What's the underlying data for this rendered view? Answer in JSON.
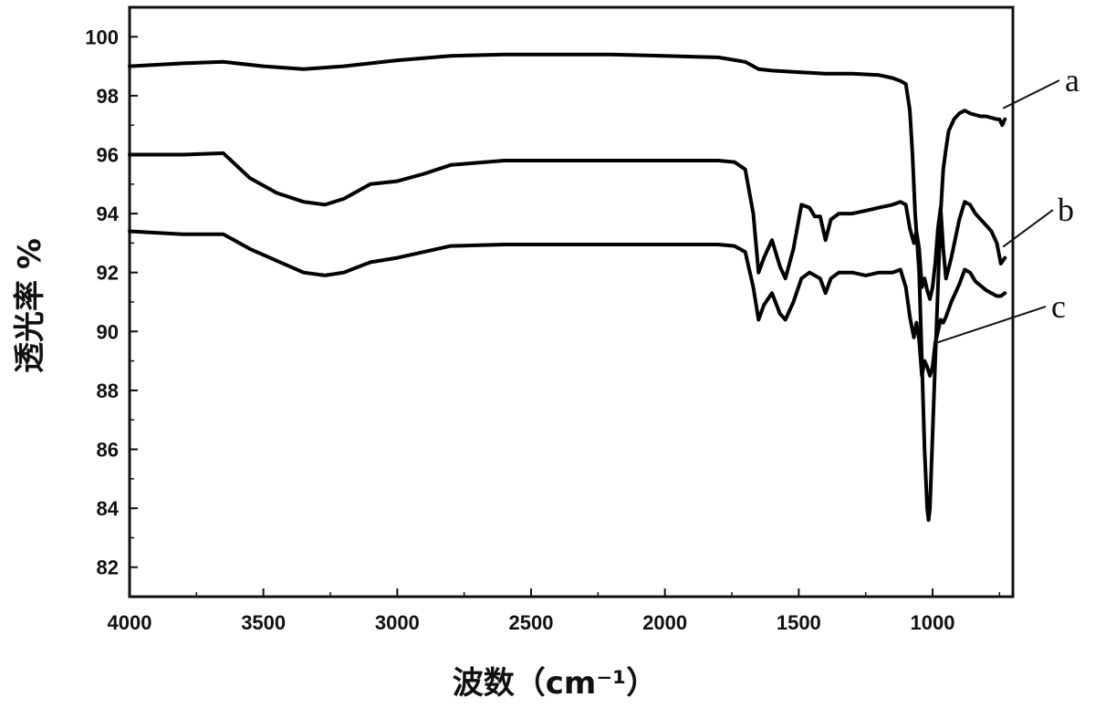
{
  "chart_data": {
    "type": "line",
    "title": "",
    "xlabel": "波数（cm⁻¹）",
    "ylabel": "透光率 %",
    "xlim": [
      4000,
      700
    ],
    "ylim": [
      81,
      101
    ],
    "x_reversed": true,
    "x_ticks": [
      4000,
      3500,
      3000,
      2500,
      2000,
      1500,
      1000
    ],
    "x_tick_labels": [
      "4000",
      "3500",
      "3000",
      "2500",
      "2000",
      "1500",
      "1000"
    ],
    "y_ticks": [
      82,
      84,
      86,
      88,
      90,
      92,
      94,
      96,
      98,
      100
    ],
    "y_tick_labels": [
      "82",
      "84",
      "86",
      "88",
      "90",
      "92",
      "94",
      "96",
      "98",
      "100"
    ],
    "grid": false,
    "legend": "none",
    "series": [
      {
        "name": "a",
        "color": "#000000",
        "x": [
          4000,
          3800,
          3650,
          3500,
          3350,
          3200,
          3000,
          2800,
          2600,
          2400,
          2200,
          2000,
          1800,
          1700,
          1650,
          1600,
          1500,
          1400,
          1300,
          1200,
          1150,
          1120,
          1100,
          1085,
          1075,
          1065,
          1050,
          1040,
          1030,
          1020,
          1015,
          1010,
          1000,
          990,
          980,
          970,
          960,
          950,
          940,
          920,
          900,
          880,
          860,
          840,
          820,
          800,
          780,
          760,
          750,
          740,
          730
        ],
        "y": [
          99.0,
          99.1,
          99.15,
          99.0,
          98.9,
          99.0,
          99.2,
          99.35,
          99.4,
          99.4,
          99.4,
          99.35,
          99.3,
          99.15,
          98.9,
          98.85,
          98.8,
          98.75,
          98.75,
          98.7,
          98.6,
          98.5,
          98.4,
          97.5,
          96.0,
          94.0,
          92.0,
          89.0,
          86.0,
          84.0,
          83.6,
          84.0,
          86.5,
          89.0,
          91.5,
          94.0,
          95.5,
          96.2,
          96.8,
          97.2,
          97.4,
          97.5,
          97.4,
          97.35,
          97.3,
          97.3,
          97.25,
          97.2,
          97.2,
          97.0,
          97.2
        ]
      },
      {
        "name": "b",
        "color": "#000000",
        "x": [
          4000,
          3800,
          3650,
          3550,
          3450,
          3350,
          3270,
          3200,
          3100,
          3000,
          2900,
          2800,
          2600,
          2400,
          2200,
          2000,
          1800,
          1740,
          1700,
          1670,
          1650,
          1630,
          1600,
          1570,
          1550,
          1520,
          1490,
          1460,
          1440,
          1420,
          1400,
          1380,
          1350,
          1300,
          1250,
          1200,
          1150,
          1120,
          1100,
          1085,
          1070,
          1060,
          1050,
          1040,
          1030,
          1020,
          1010,
          1000,
          990,
          980,
          970,
          960,
          950,
          930,
          900,
          880,
          860,
          840,
          800,
          780,
          760,
          745,
          730
        ],
        "y": [
          96.0,
          96.0,
          96.05,
          95.2,
          94.7,
          94.4,
          94.3,
          94.5,
          95.0,
          95.1,
          95.35,
          95.65,
          95.8,
          95.8,
          95.8,
          95.8,
          95.8,
          95.75,
          95.5,
          94.0,
          92.0,
          92.5,
          93.1,
          92.2,
          91.8,
          92.8,
          94.3,
          94.2,
          93.9,
          93.9,
          93.1,
          93.8,
          94.0,
          94.0,
          94.1,
          94.2,
          94.3,
          94.4,
          94.3,
          93.5,
          93.0,
          93.4,
          92.8,
          91.5,
          91.8,
          91.4,
          91.1,
          91.5,
          92.3,
          93.5,
          94.2,
          92.8,
          91.8,
          92.5,
          93.8,
          94.4,
          94.3,
          94.0,
          93.6,
          93.4,
          93.0,
          92.3,
          92.5
        ]
      },
      {
        "name": "c",
        "color": "#000000",
        "x": [
          4000,
          3800,
          3650,
          3550,
          3450,
          3350,
          3270,
          3200,
          3100,
          3000,
          2900,
          2800,
          2600,
          2400,
          2200,
          2000,
          1800,
          1740,
          1700,
          1670,
          1650,
          1630,
          1600,
          1570,
          1550,
          1520,
          1490,
          1460,
          1440,
          1420,
          1400,
          1380,
          1350,
          1300,
          1250,
          1200,
          1150,
          1120,
          1100,
          1085,
          1070,
          1060,
          1050,
          1040,
          1030,
          1020,
          1010,
          1000,
          990,
          980,
          970,
          960,
          950,
          930,
          900,
          880,
          860,
          840,
          800,
          780,
          760,
          745,
          730
        ],
        "y": [
          93.4,
          93.3,
          93.3,
          92.8,
          92.4,
          92.0,
          91.9,
          92.0,
          92.35,
          92.5,
          92.7,
          92.9,
          92.95,
          92.95,
          92.95,
          92.95,
          92.95,
          92.9,
          92.7,
          91.5,
          90.4,
          90.9,
          91.3,
          90.6,
          90.4,
          91.0,
          91.8,
          92.0,
          91.9,
          91.8,
          91.3,
          91.8,
          92.0,
          92.0,
          91.9,
          92.0,
          92.0,
          92.1,
          91.5,
          90.5,
          89.8,
          90.3,
          89.7,
          88.5,
          89.0,
          88.8,
          88.5,
          88.8,
          89.6,
          90.0,
          90.4,
          90.3,
          90.5,
          91.0,
          91.6,
          92.1,
          92.0,
          91.7,
          91.4,
          91.3,
          91.2,
          91.2,
          91.3
        ]
      }
    ]
  }
}
